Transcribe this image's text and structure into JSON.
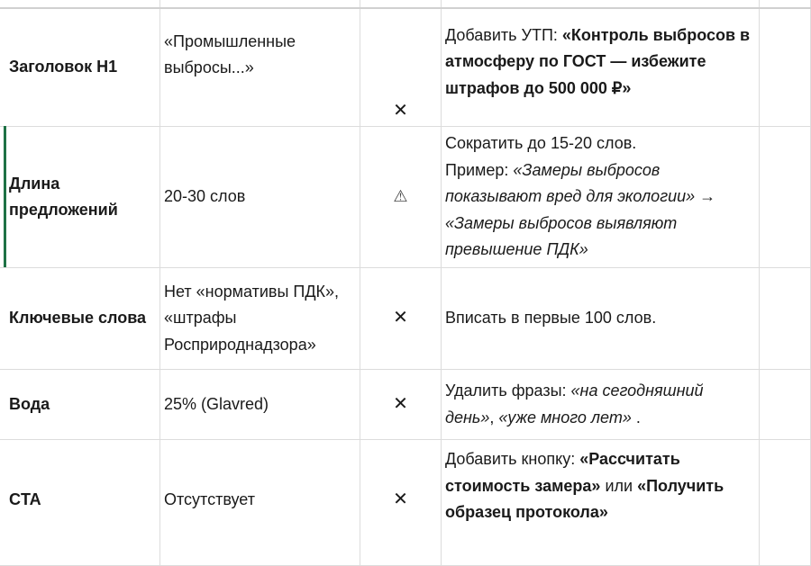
{
  "rows": [
    {
      "criterion": "Заголовок H1",
      "current": "«Промышленные выбросы...»",
      "status": "✕",
      "status_icon": "cross-icon",
      "rec": {
        "prefix": "Добавить УТП: ",
        "bold": "«Контроль выбросов в атмосферу по ГОСТ — избежите штрафов до 500 000 ₽»"
      }
    },
    {
      "criterion": "Длина предложений",
      "current": "20-30 слов",
      "status": "⚠",
      "status_icon": "warning-icon",
      "rec": {
        "line1": "Сократить до 15-20 слов.",
        "prefix": "Пример: ",
        "italic1": "«Замеры выбросов показывают вред для экологии»",
        "arrow": " → ",
        "italic2": "«Замеры выбросов выявляют превышение ПДК»"
      }
    },
    {
      "criterion": "Ключевые слова",
      "current": "Нет «нормативы ПДК», «штрафы Росприроднадзора»",
      "status": "✕",
      "status_icon": "cross-icon",
      "rec": {
        "text": "Вписать в первые 100 слов."
      }
    },
    {
      "criterion": "Вода",
      "current": "25% (Glavred)",
      "status": "✕",
      "status_icon": "cross-icon",
      "rec": {
        "prefix": "Удалить фразы: ",
        "italic1": "«на сегодняшний день»",
        "sep": ", ",
        "italic2": "«уже много лет»",
        "end": " ."
      }
    },
    {
      "criterion": "CTA",
      "current": "Отсутствует",
      "status": "✕",
      "status_icon": "cross-icon",
      "rec": {
        "prefix": "Добавить кнопку: ",
        "bold1": "«Рассчитать стоимость замера»",
        "mid": " или ",
        "bold2": "«Получить образец протокола»"
      }
    }
  ]
}
